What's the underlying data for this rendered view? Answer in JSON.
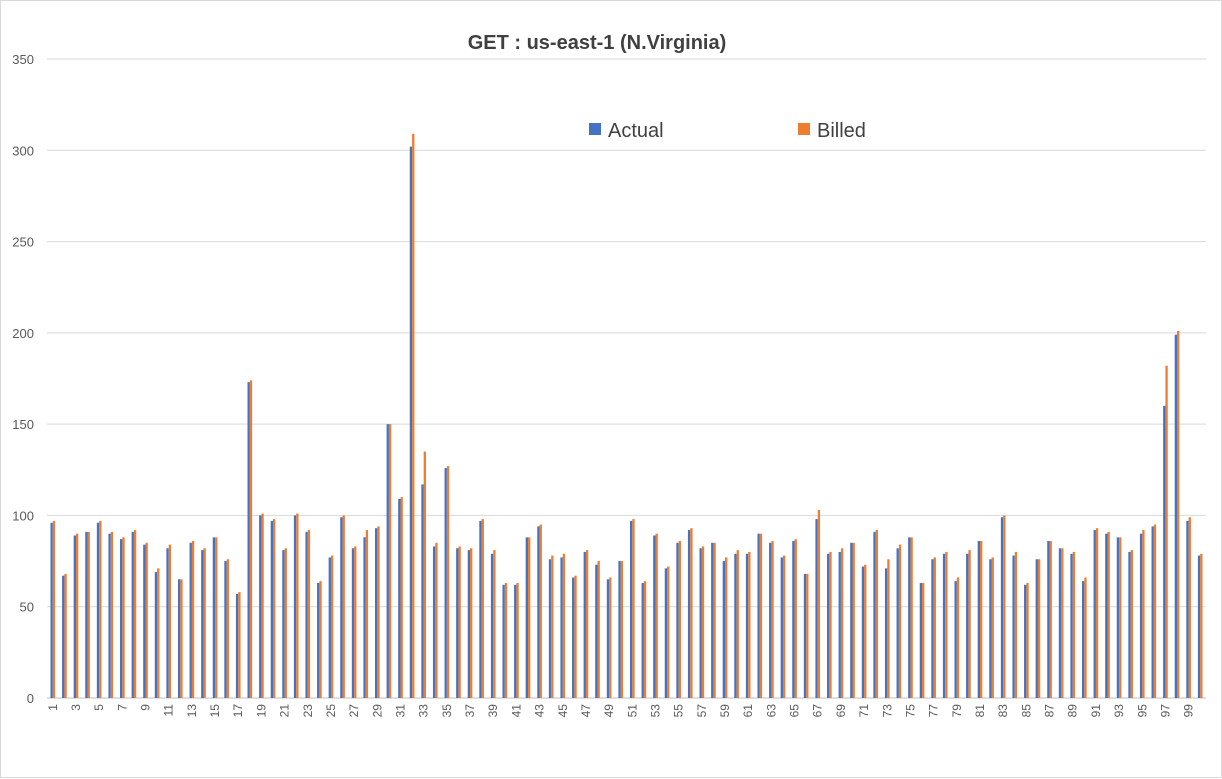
{
  "chart_data": {
    "type": "bar",
    "title": "GET : us-east-1 (N.Virginia)",
    "xlabel": "",
    "ylabel": "",
    "ylim": [
      0,
      350
    ],
    "yticks": [
      "0",
      "50",
      "100",
      "150",
      "200",
      "250",
      "300",
      "350"
    ],
    "grid": true,
    "legend_position": "top-center",
    "colors": {
      "Actual": "#4472c4",
      "Billed": "#ed7d31"
    },
    "categories": [
      1,
      2,
      3,
      4,
      5,
      6,
      7,
      8,
      9,
      10,
      11,
      12,
      13,
      14,
      15,
      16,
      17,
      18,
      19,
      20,
      21,
      22,
      23,
      24,
      25,
      26,
      27,
      28,
      29,
      30,
      31,
      32,
      33,
      34,
      35,
      36,
      37,
      38,
      39,
      40,
      41,
      42,
      43,
      44,
      45,
      46,
      47,
      48,
      49,
      50,
      51,
      52,
      53,
      54,
      55,
      56,
      57,
      58,
      59,
      60,
      61,
      62,
      63,
      64,
      65,
      66,
      67,
      68,
      69,
      70,
      71,
      72,
      73,
      74,
      75,
      76,
      77,
      78,
      79,
      80,
      81,
      82,
      83,
      84,
      85,
      86,
      87,
      88,
      89,
      90,
      91,
      92,
      93,
      94,
      95,
      96,
      97,
      98,
      99,
      100
    ],
    "x_tick_labels": [
      "1",
      "",
      "3",
      "",
      "5",
      "",
      "7",
      "",
      "9",
      "",
      "11",
      "",
      "13",
      "",
      "15",
      "",
      "17",
      "",
      "19",
      "",
      "21",
      "",
      "23",
      "",
      "25",
      "",
      "27",
      "",
      "29",
      "",
      "31",
      "",
      "33",
      "",
      "35",
      "",
      "37",
      "",
      "39",
      "",
      "41",
      "",
      "43",
      "",
      "45",
      "",
      "47",
      "",
      "49",
      "",
      "51",
      "",
      "53",
      "",
      "55",
      "",
      "57",
      "",
      "59",
      "",
      "61",
      "",
      "63",
      "",
      "65",
      "",
      "67",
      "",
      "69",
      "",
      "71",
      "",
      "73",
      "",
      "75",
      "",
      "77",
      "",
      "79",
      "",
      "81",
      "",
      "83",
      "",
      "85",
      "",
      "87",
      "",
      "89",
      "",
      "91",
      "",
      "93",
      "",
      "95",
      "",
      "97",
      "",
      "99",
      ""
    ],
    "series": [
      {
        "name": "Actual",
        "values": [
          96,
          67,
          89,
          91,
          96,
          90,
          87,
          91,
          84,
          69,
          82,
          65,
          85,
          81,
          88,
          75,
          57,
          173,
          100,
          97,
          81,
          100,
          91,
          63,
          77,
          99,
          82,
          88,
          93,
          150,
          109,
          302,
          117,
          83,
          126,
          82,
          81,
          97,
          79,
          62,
          62,
          88,
          94,
          76,
          77,
          66,
          80,
          73,
          65,
          75,
          97,
          63,
          89,
          71,
          85,
          92,
          82,
          85,
          75,
          79,
          79,
          90,
          85,
          77,
          86,
          68,
          98,
          79,
          80,
          85,
          72,
          91,
          71,
          82,
          88,
          63,
          76,
          79,
          64,
          79,
          86,
          76,
          99,
          78,
          62,
          76,
          86,
          82,
          79,
          64,
          92,
          90,
          88,
          80,
          90,
          94,
          160,
          199,
          97,
          78
        ]
      },
      {
        "name": "Billed",
        "values": [
          97,
          68,
          90,
          91,
          97,
          91,
          88,
          92,
          85,
          71,
          84,
          65,
          86,
          82,
          88,
          76,
          58,
          174,
          101,
          98,
          82,
          101,
          92,
          64,
          78,
          100,
          83,
          92,
          94,
          150,
          110,
          309,
          135,
          85,
          127,
          83,
          82,
          98,
          81,
          63,
          63,
          88,
          95,
          78,
          79,
          67,
          81,
          75,
          66,
          75,
          98,
          64,
          90,
          72,
          86,
          93,
          83,
          85,
          77,
          81,
          80,
          90,
          86,
          78,
          87,
          68,
          103,
          80,
          82,
          85,
          73,
          92,
          76,
          84,
          88,
          63,
          77,
          80,
          66,
          81,
          86,
          77,
          100,
          80,
          63,
          76,
          86,
          82,
          80,
          66,
          93,
          91,
          88,
          81,
          92,
          95,
          182,
          201,
          99,
          79
        ]
      }
    ]
  }
}
